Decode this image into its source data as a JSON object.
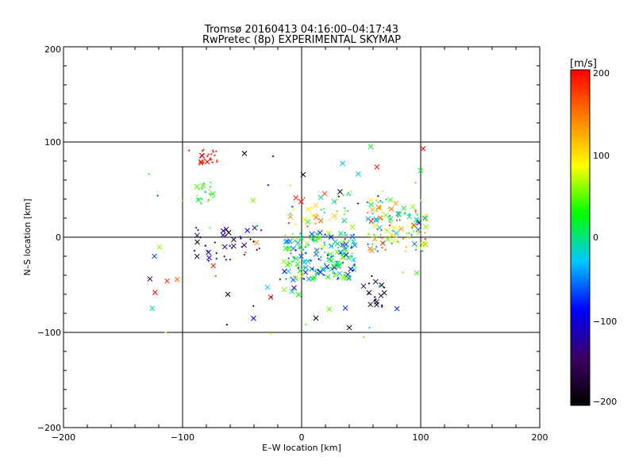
{
  "chart_data": {
    "type": "scatter",
    "title": "Tromsø 20160413 04:16:00–04:17:43",
    "subtitle": "RwPretec (8p) EXPERIMENTAL SKYMAP",
    "xlabel": "E–W location [km]",
    "ylabel": "N–S location [km]",
    "xlim": [
      -200,
      200
    ],
    "ylim": [
      -200,
      200
    ],
    "x_ticks": [
      -200,
      -100,
      0,
      100,
      200
    ],
    "y_ticks": [
      -200,
      -100,
      0,
      100,
      200
    ],
    "x_tick_labels": [
      "−200",
      "−100",
      "0",
      "100",
      "200"
    ],
    "y_tick_labels": [
      "−200",
      "−100",
      "0",
      "100",
      "200"
    ],
    "grid": true,
    "markers": [
      "x",
      "+"
    ],
    "colorbar": {
      "title": "[m/s]",
      "range": [
        -200,
        200
      ],
      "ticks": [
        200,
        100,
        0,
        -100,
        -200
      ],
      "tick_labels": [
        "200",
        "100",
        "0",
        "−100",
        "−200"
      ],
      "colors": [
        "#000000",
        "#3c0064",
        "#0000ff",
        "#00c8ff",
        "#00ff00",
        "#ffff00",
        "#ff8000",
        "#ff0000"
      ]
    },
    "clusters": [
      {
        "name": "NW red group",
        "x": [
          -85,
          -70
        ],
        "y": [
          78,
          92
        ],
        "v": [
          165,
          210
        ],
        "n": 24
      },
      {
        "name": "NW green group",
        "x": [
          -88,
          -73
        ],
        "y": [
          35,
          58
        ],
        "v": [
          -20,
          60
        ],
        "n": 22
      },
      {
        "name": "central band",
        "x": [
          -15,
          45
        ],
        "y": [
          -45,
          5
        ],
        "v": [
          -100,
          80
        ],
        "n": 200
      },
      {
        "name": "upper central",
        "x": [
          -10,
          45
        ],
        "y": [
          10,
          50
        ],
        "v": [
          -40,
          200
        ],
        "n": 40
      },
      {
        "name": "east group",
        "x": [
          55,
          105
        ],
        "y": [
          -15,
          40
        ],
        "v": [
          -60,
          200
        ],
        "n": 130
      },
      {
        "name": "west-central dark",
        "x": [
          -90,
          -30
        ],
        "y": [
          -25,
          10
        ],
        "v": [
          -200,
          -80
        ],
        "n": 40
      },
      {
        "name": "SE dark group",
        "x": [
          55,
          70
        ],
        "y": [
          -72,
          -40
        ],
        "v": [
          -210,
          -160
        ],
        "n": 16
      },
      {
        "name": "sparse scatter",
        "x": [
          -130,
          105
        ],
        "y": [
          -105,
          95
        ],
        "v": [
          -200,
          200
        ],
        "n": 60
      }
    ],
    "points": [
      {
        "x": -123,
        "y": -58,
        "v": 200,
        "m": "x"
      },
      {
        "x": -113,
        "y": -46,
        "v": 190,
        "m": "x"
      },
      {
        "x": -62,
        "y": -60,
        "v": -200,
        "m": "x"
      },
      {
        "x": -48,
        "y": 88,
        "v": -200,
        "m": "x"
      },
      {
        "x": -24,
        "y": 85,
        "v": -200,
        "m": "+"
      },
      {
        "x": 12,
        "y": -85,
        "v": -200,
        "m": "x"
      },
      {
        "x": 40,
        "y": -95,
        "v": -200,
        "m": "x"
      },
      {
        "x": 58,
        "y": 95,
        "v": 20,
        "m": "x"
      },
      {
        "x": 102,
        "y": 93,
        "v": 200,
        "m": "x"
      },
      {
        "x": 100,
        "y": 70,
        "v": 20,
        "m": "x"
      },
      {
        "x": -26,
        "y": -63,
        "v": 200,
        "m": "x"
      },
      {
        "x": -8,
        "y": -57,
        "v": 0,
        "m": "x"
      },
      {
        "x": 52,
        "y": -105,
        "v": 130,
        "m": "+"
      },
      {
        "x": 63,
        "y": -71,
        "v": -200,
        "m": "x"
      },
      {
        "x": 57,
        "y": -95,
        "v": -30,
        "m": "+"
      }
    ]
  }
}
